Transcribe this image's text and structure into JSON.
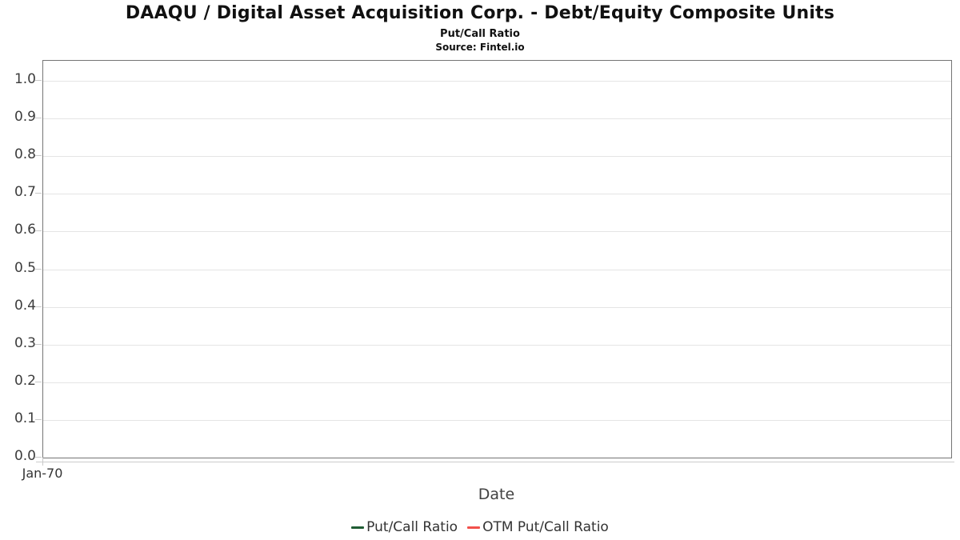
{
  "chart_data": {
    "type": "line",
    "title": "DAAQU / Digital Asset Acquisition Corp. - Debt/Equity Composite Units",
    "subtitle": "Put/Call Ratio",
    "source": "Source: Fintel.io",
    "xlabel": "Date",
    "ylabel": "",
    "ylim": [
      0.0,
      1.0
    ],
    "ytick_labels": [
      "1.0",
      "0.9",
      "0.8",
      "0.7",
      "0.6",
      "0.5",
      "0.4",
      "0.3",
      "0.2",
      "0.1",
      "0.0"
    ],
    "xticks": [
      "Jan-70"
    ],
    "grid": true,
    "legend_position": "bottom",
    "plot_is_empty": true,
    "series": [
      {
        "name": "Put/Call Ratio",
        "color": "#1f5c33",
        "x": [],
        "values": []
      },
      {
        "name": "OTM Put/Call Ratio",
        "color": "#f2504b",
        "x": [],
        "values": []
      }
    ]
  },
  "colors": {
    "plot_border": "#757575",
    "gridline": "#e4e4e4",
    "tick": "#c9c9c9",
    "title_text": "#111111",
    "axis_text": "#3c3c3c"
  }
}
